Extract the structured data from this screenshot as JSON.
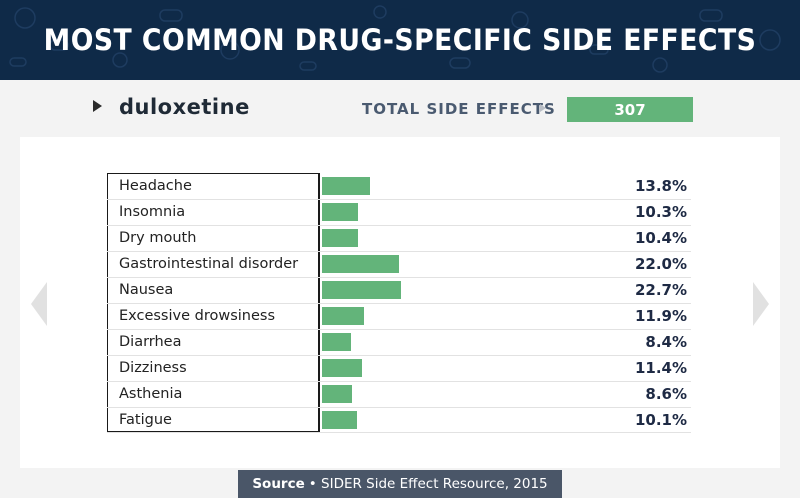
{
  "header": {
    "title": "MOST COMMON DRUG-SPECIFIC SIDE EFFECTS"
  },
  "selector": {
    "drug": "duloxetine",
    "total_label": "TOTAL SIDE EFFECTS",
    "total_value": "307"
  },
  "source": {
    "label": "Source",
    "text": "• SIDER Side Effect Resource, 2015"
  },
  "colors": {
    "header_bg": "#0f2a48",
    "bar": "#63b47a",
    "accent_text": "#1e2a44"
  },
  "icons": {
    "caret": "caret-right-icon",
    "prev": "chevron-left-icon",
    "next": "chevron-right-icon"
  },
  "chart_data": {
    "type": "bar",
    "orientation": "horizontal",
    "title": "MOST COMMON DRUG-SPECIFIC SIDE EFFECTS",
    "categories": [
      "Headache",
      "Insomnia",
      "Dry mouth",
      "Gastrointestinal disorder",
      "Nausea",
      "Excessive drowsiness",
      "Diarrhea",
      "Dizziness",
      "Asthenia",
      "Fatigue"
    ],
    "values": [
      13.8,
      10.3,
      10.4,
      22.0,
      22.7,
      11.9,
      8.4,
      11.4,
      8.6,
      10.1
    ],
    "value_labels": [
      "13.8%",
      "10.3%",
      "10.4%",
      "22.0%",
      "22.7%",
      "11.9%",
      "8.4%",
      "11.4%",
      "8.6%",
      "10.1%"
    ],
    "unit": "%"
  }
}
